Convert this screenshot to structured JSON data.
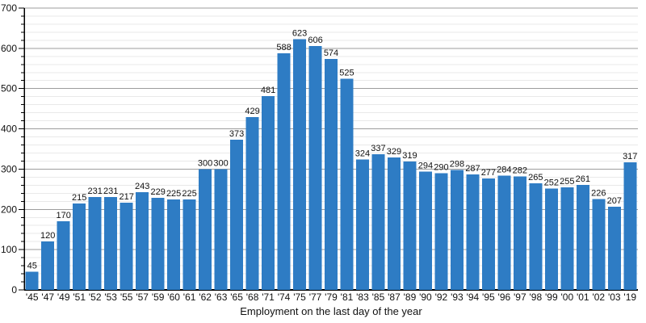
{
  "chart_data": {
    "type": "bar",
    "title": "",
    "xlabel": "Employment on the last day of the year",
    "ylabel": "",
    "ylim": [
      0,
      700
    ],
    "y_tick_labels": [
      0,
      100,
      200,
      300,
      400,
      500,
      600,
      700
    ],
    "y_major_tick_step": 100,
    "y_minor_tick_step": 20,
    "grid": "horizontal major and minor gridlines",
    "legend": "none",
    "value_labels_shown": true,
    "bar_color": "#2e7cc4",
    "axis_color": "#000000",
    "major_grid_color": "#9d9d9d",
    "minor_grid_color": "#e9e9e9",
    "categories": [
      "'45",
      "'47",
      "'49",
      "'51",
      "'52",
      "'53",
      "'55",
      "'57",
      "'59",
      "'60",
      "'61",
      "'62",
      "'63",
      "'65",
      "'68",
      "'71",
      "'74",
      "'75",
      "'77",
      "'79",
      "'81",
      "'83",
      "'85",
      "'87",
      "'89",
      "'90",
      "'92",
      "'93",
      "'94",
      "'95",
      "'96",
      "'97",
      "'98",
      "'99",
      "'00",
      "'01",
      "'02",
      "'03",
      "'19"
    ],
    "values": [
      45,
      120,
      170,
      215,
      231,
      231,
      217,
      243,
      229,
      225,
      225,
      300,
      300,
      373,
      429,
      481,
      588,
      623,
      606,
      574,
      525,
      324,
      337,
      329,
      319,
      294,
      290,
      298,
      287,
      277,
      284,
      282,
      265,
      252,
      255,
      261,
      226,
      207,
      317
    ]
  }
}
